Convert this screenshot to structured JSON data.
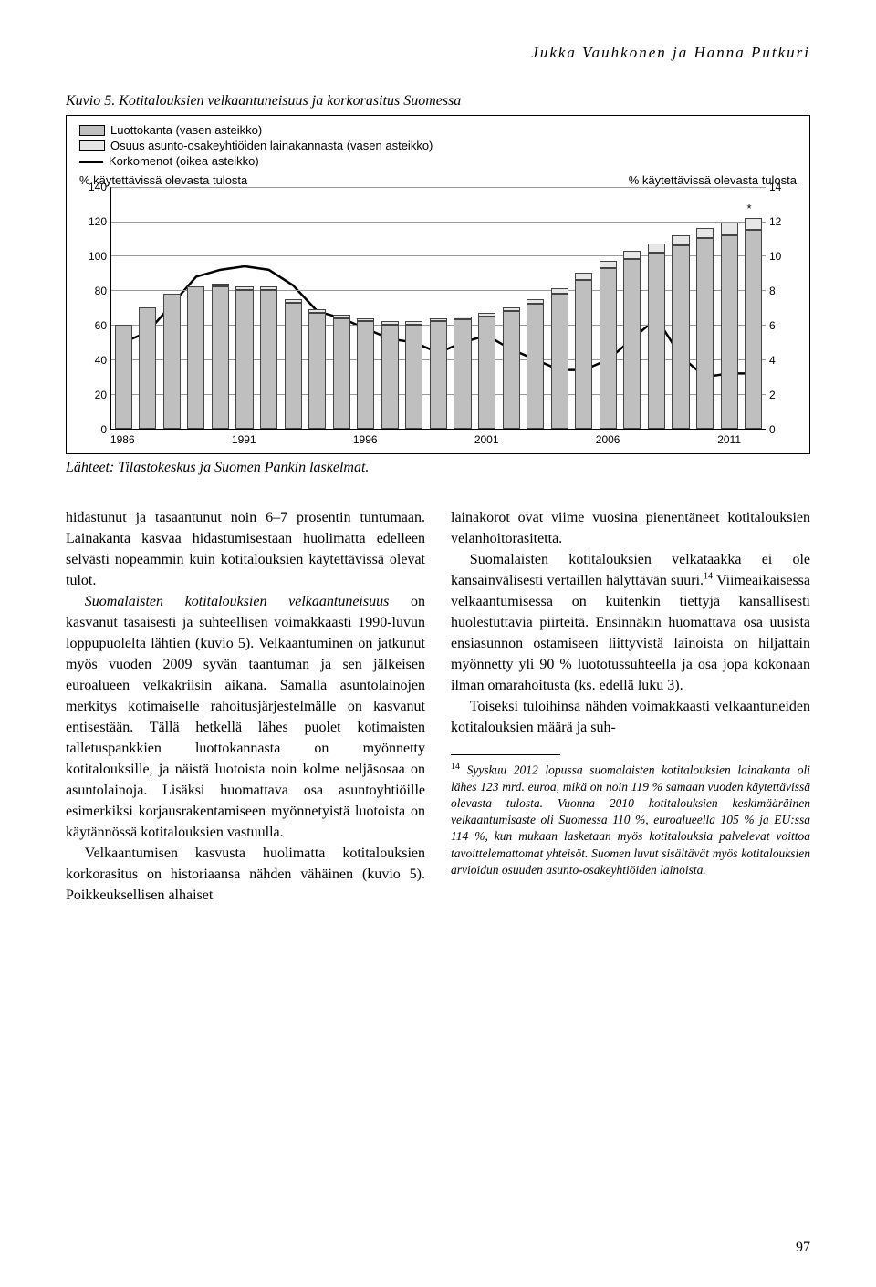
{
  "running_head": "Jukka Vauhkonen ja Hanna Putkuri",
  "figure": {
    "title": "Kuvio 5. Kotitalouksien velkaantuneisuus ja korkorasitus Suomessa",
    "legend": [
      {
        "swatch": "#bfbfbf",
        "label": "Luottokanta (vasen asteikko)"
      },
      {
        "swatch": "#e6e6e6",
        "label": "Osuus asunto-osakeyhtiöiden lainakannasta (vasen asteikko)"
      },
      {
        "swatch": "line",
        "label": "Korkomenot (oikea asteikko)"
      }
    ],
    "axis_left_title": "% käytettävissä olevasta tulosta",
    "axis_right_title": "% käytettävissä olevasta tulosta",
    "y_left": {
      "min": 0,
      "max": 140,
      "step": 20
    },
    "y_right": {
      "min": 0,
      "max": 14,
      "step": 2
    },
    "grid_color": "#999999",
    "bar_colors": {
      "a": "#bfbfbf",
      "b": "#e6e6e6"
    },
    "bar_border": "#444444",
    "line_color": "#000000",
    "years_start": 1986,
    "years_end": 2012,
    "series_a": [
      60,
      70,
      78,
      82,
      82,
      80,
      80,
      73,
      67,
      64,
      62,
      60,
      60,
      62,
      63,
      65,
      68,
      72,
      78,
      86,
      93,
      98,
      102,
      106,
      110,
      112,
      115
    ],
    "series_b": [
      0,
      0,
      0,
      0,
      2,
      2,
      2,
      2,
      2,
      2,
      2,
      2,
      2,
      2,
      2,
      2,
      2,
      3,
      3,
      4,
      4,
      5,
      5,
      6,
      6,
      7,
      7
    ],
    "series_line": [
      5.0,
      5.6,
      7.2,
      8.8,
      9.2,
      9.4,
      9.2,
      8.3,
      6.8,
      6.4,
      5.8,
      5.2,
      5.0,
      4.4,
      5.0,
      5.4,
      4.6,
      4.0,
      3.4,
      3.4,
      4.0,
      5.2,
      6.4,
      4.2,
      3.0,
      3.2,
      3.2
    ],
    "x_ticks": [
      1986,
      1991,
      1996,
      2001,
      2006,
      2011
    ],
    "star": "*",
    "source": "Lähteet: Tilastokeskus ja Suomen Pankin laskelmat."
  },
  "left_col": {
    "p1": "hidastunut ja tasaantunut noin 6–7 prosentin tuntumaan. Lainakanta kasvaa hidastumisestaan huolimatta edelleen selvästi nopeammin kuin kotitalouksien käytettävissä olevat tulot.",
    "p2a": "Suomalaisten kotitalouksien velkaantuneisuus",
    "p2b": " on kasvanut tasaisesti ja suhteellisen voimakkaasti 1990-luvun loppupuolelta lähtien (kuvio 5). Velkaantuminen on jatkunut myös vuoden 2009 syvän taantuman ja sen jälkeisen euroalueen velkakriisin aikana. Samalla asuntolainojen merkitys kotimaiselle rahoitusjärjestelmälle on kasvanut entisestään. Tällä hetkellä lähes puolet kotimaisten talletuspankkien luottokannasta on myönnetty kotitalouksille, ja näistä luotoista noin kolme neljäsosaa on asuntolainoja. Lisäksi huomattava osa asuntoyhtiöille esimerkiksi korjausrakentamiseen myönnetyistä luotoista on käytännössä kotitalouksien vastuulla.",
    "p3": "Velkaantumisen kasvusta huolimatta kotitalouksien korkorasitus on historiaansa nähden vähäinen (kuvio 5). Poikkeuksellisen alhaiset"
  },
  "right_col": {
    "p1": "lainakorot ovat viime vuosina pienentäneet kotitalouksien velanhoitorasitetta.",
    "p2": "Suomalaisten kotitalouksien velkataakka ei ole kansainvälisesti vertaillen hälyttävän suuri.",
    "p2b": " Viimeaikaisessa velkaantumisessa on kuitenkin tiettyjä kansallisesti huolestuttavia piirteitä. Ensinnäkin huomattava osa uusista ensiasunnon ostamiseen liittyvistä lainoista on hiljattain myönnetty yli 90 % luototussuhteella ja osa jopa kokonaan ilman omarahoitusta (ks. edellä luku 3).",
    "p3": "Toiseksi tuloihinsa nähden voimakkaasti velkaantuneiden kotitalouksien määrä ja suh-",
    "fn_num": "14",
    "fn": "Syyskuu 2012 lopussa suomalaisten kotitalouksien lainakanta oli lähes 123 mrd. euroa, mikä on noin 119 % samaan vuoden käytettävissä olevasta tulosta. Vuonna 2010 kotitalouksien keskimääräinen velkaantumisaste oli Suomessa 110 %, euroalueella 105 % ja EU:ssa 114 %, kun mukaan lasketaan myös kotitalouksia palvelevat voittoa tavoittelemattomat yhteisöt. Suomen luvut sisältävät myös kotitalouksien arvioidun osuuden asunto-osakeyhtiöiden lainoista."
  },
  "page_number": "97"
}
